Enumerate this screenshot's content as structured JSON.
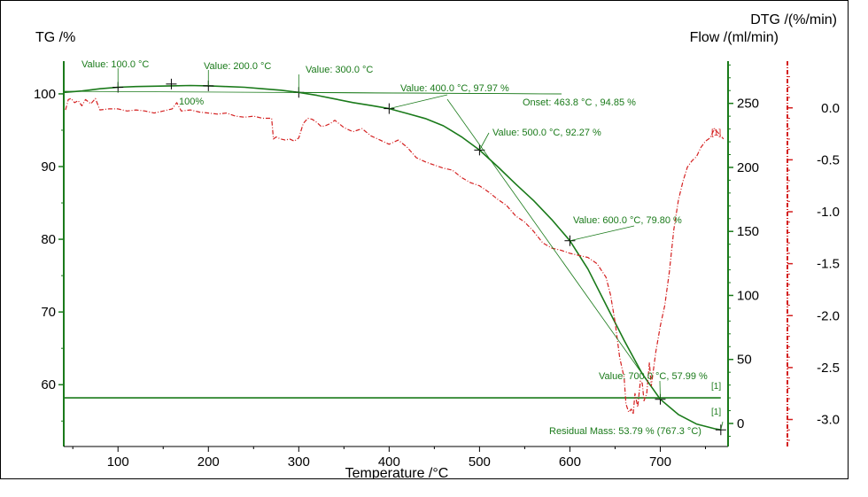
{
  "chart_data": {
    "type": "line",
    "xlabel": "Temperature /°C",
    "x_ticks": [
      "100",
      "200",
      "300",
      "400",
      "500",
      "600",
      "700"
    ],
    "xlim": [
      40,
      775
    ],
    "axes": {
      "tg": {
        "label": "TG /%",
        "ticks": [
          "60",
          "70",
          "80",
          "90",
          "100"
        ],
        "range": [
          51.5,
          104.5
        ],
        "color": "#1a7a1a"
      },
      "flow": {
        "label": "Flow /(ml/min)",
        "ticks": [
          "0",
          "50",
          "100",
          "150",
          "200",
          "250"
        ],
        "range": [
          -18,
          283
        ],
        "color": "#1a7a1a"
      },
      "dtg": {
        "label": "DTG /(%/min)",
        "ticks": [
          "0.0",
          "-0.5",
          "-1.0",
          "-1.5",
          "-2.0",
          "-2.5",
          "-3.0"
        ],
        "range": [
          -3.26,
          0.45
        ],
        "color": "#d42020"
      }
    },
    "colors": {
      "tg": "#1a7a1a",
      "flow": "#1a7a1a",
      "dtg": "#d42020"
    },
    "series": [
      {
        "axis": "tg",
        "x": [
          40,
          60,
          80,
          100,
          120,
          140,
          160,
          180,
          200,
          220,
          240,
          260,
          280,
          300,
          320,
          340,
          360,
          380,
          400,
          420,
          440,
          460,
          480,
          500,
          520,
          540,
          560,
          580,
          600,
          620,
          640,
          660,
          680,
          700,
          720,
          740,
          760,
          767
        ],
        "y": [
          100.2,
          100.4,
          100.7,
          100.9,
          101.0,
          101.05,
          101.1,
          101.15,
          101.1,
          101.0,
          100.9,
          100.7,
          100.5,
          100.2,
          99.8,
          99.3,
          98.8,
          98.4,
          97.97,
          97.3,
          96.6,
          95.6,
          94.1,
          92.27,
          90.0,
          87.6,
          85.3,
          82.7,
          79.8,
          75.9,
          71.0,
          66.1,
          61.5,
          57.99,
          55.9,
          54.6,
          53.95,
          53.79
        ]
      },
      {
        "axis": "flow",
        "x": [
          40,
          767
        ],
        "y": [
          20,
          20
        ]
      },
      {
        "axis": "dtg",
        "x": [
          42,
          45,
          48,
          52,
          56,
          60,
          64,
          70,
          75,
          80,
          90,
          100,
          110,
          120,
          130,
          140,
          150,
          160,
          165,
          170,
          180,
          190,
          200,
          210,
          220,
          230,
          240,
          250,
          260,
          265,
          270,
          272,
          275,
          280,
          285,
          290,
          295,
          300,
          305,
          310,
          315,
          320,
          325,
          330,
          335,
          340,
          350,
          360,
          370,
          380,
          390,
          400,
          410,
          420,
          430,
          440,
          450,
          460,
          470,
          480,
          490,
          500,
          510,
          520,
          530,
          540,
          550,
          560,
          570,
          580,
          590,
          600,
          610,
          620,
          630,
          640,
          645,
          650,
          655,
          660,
          662,
          665,
          668,
          670,
          672,
          675,
          678,
          680,
          682,
          685,
          688,
          690,
          695,
          700,
          705,
          710,
          715,
          720,
          725,
          730,
          735,
          740,
          745,
          750,
          755,
          760,
          765,
          770
        ],
        "y": [
          -0.02,
          0.08,
          0.09,
          0.05,
          0.07,
          0.02,
          0.08,
          0.04,
          0.09,
          -0.02,
          -0.01,
          -0.01,
          -0.03,
          -0.02,
          -0.03,
          -0.05,
          -0.03,
          -0.01,
          0.05,
          -0.03,
          -0.02,
          -0.04,
          -0.05,
          -0.06,
          -0.05,
          -0.08,
          -0.09,
          -0.08,
          -0.1,
          -0.1,
          -0.1,
          -0.3,
          -0.28,
          -0.3,
          -0.31,
          -0.3,
          -0.32,
          -0.29,
          -0.15,
          -0.1,
          -0.11,
          -0.14,
          -0.18,
          -0.17,
          -0.15,
          -0.12,
          -0.19,
          -0.23,
          -0.2,
          -0.27,
          -0.31,
          -0.35,
          -0.31,
          -0.38,
          -0.48,
          -0.52,
          -0.55,
          -0.58,
          -0.6,
          -0.67,
          -0.72,
          -0.75,
          -0.81,
          -0.88,
          -0.94,
          -1.04,
          -1.1,
          -1.19,
          -1.3,
          -1.35,
          -1.37,
          -1.4,
          -1.42,
          -1.44,
          -1.5,
          -1.63,
          -1.8,
          -2.06,
          -2.4,
          -2.6,
          -2.85,
          -2.93,
          -2.9,
          -2.95,
          -2.75,
          -2.88,
          -2.63,
          -2.65,
          -2.82,
          -2.75,
          -2.45,
          -2.68,
          -2.35,
          -2.1,
          -1.9,
          -1.58,
          -1.17,
          -0.89,
          -0.71,
          -0.57,
          -0.51,
          -0.47,
          -0.38,
          -0.32,
          -0.29,
          -0.2,
          -0.25,
          -0.3
        ]
      }
    ],
    "annotations": {
      "v100": "Value: 100.0 °C",
      "v200": "Value: 200.0 °C",
      "v300": "Value: 300.0 °C",
      "v400": "Value: 400.0 °C, 97.97 %",
      "onset": "Onset: 463.8 °C ,  94.85 %",
      "v500": "Value: 500.0 °C, 92.27 %",
      "v600": "Value: 600.0 °C, 79.80 %",
      "v700": "Value: 700.0 °C, 57.99 %",
      "residual": "Residual Mass: 53.79 % (767.3 °C)",
      "pct100": "100%",
      "tag1": "[1]",
      "tag2": "[1]",
      "tag3": "[1]"
    },
    "markers": [
      {
        "x": 100,
        "y": 100.9
      },
      {
        "x": 159,
        "y": 101.35
      },
      {
        "x": 200,
        "y": 101.1
      },
      {
        "x": 300,
        "y": 100.2
      },
      {
        "x": 400,
        "y": 97.97
      },
      {
        "x": 500,
        "y": 92.27
      },
      {
        "x": 600,
        "y": 79.8
      },
      {
        "x": 700,
        "y": 57.99
      },
      {
        "x": 767,
        "y": 53.79
      }
    ]
  }
}
